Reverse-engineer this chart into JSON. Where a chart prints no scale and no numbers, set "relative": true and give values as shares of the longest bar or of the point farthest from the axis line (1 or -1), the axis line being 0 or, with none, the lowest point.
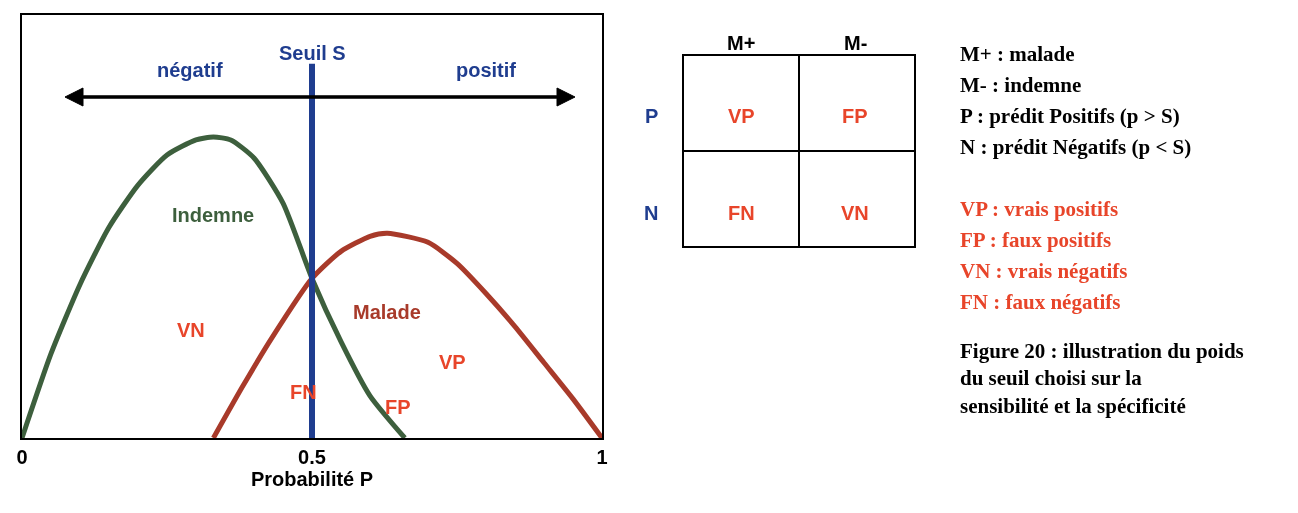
{
  "chart_data": [
    {
      "type": "line",
      "relative": true,
      "xlabel": "Probabilité P",
      "xlim": [
        0,
        1
      ],
      "xticks": [
        0,
        0.5,
        1
      ],
      "legend": false,
      "marker": "none",
      "line_style": "solid",
      "series": [
        {
          "name": "Indemne",
          "color": "#3d5f3d",
          "x": [
            0,
            0.05,
            0.1,
            0.15,
            0.2,
            0.25,
            0.3,
            0.33,
            0.36,
            0.4,
            0.45,
            0.5,
            0.55,
            0.6,
            0.66
          ],
          "values": [
            0,
            0.28,
            0.51,
            0.7,
            0.84,
            0.94,
            0.99,
            1,
            0.99,
            0.93,
            0.78,
            0.53,
            0.32,
            0.14,
            0
          ]
        },
        {
          "name": "Malade",
          "color": "#a83a2a",
          "x": [
            0.33,
            0.38,
            0.43,
            0.5,
            0.55,
            0.6,
            0.63,
            0.7,
            0.75,
            0.8,
            0.85,
            0.9,
            0.95,
            1
          ],
          "values": [
            0,
            0.17,
            0.33,
            0.53,
            0.62,
            0.67,
            0.68,
            0.65,
            0.58,
            0.48,
            0.37,
            0.25,
            0.13,
            0
          ]
        }
      ],
      "ref_lines": [
        {
          "axis": "x",
          "value": 0.5,
          "label": "Seuil S",
          "color": "#1f3d8f"
        }
      ],
      "annotations": [
        "négatif",
        "positif",
        "VN",
        "FN",
        "FP",
        "VP"
      ]
    },
    {
      "type": "other",
      "annotations": [
        "M+",
        "M-",
        "P",
        "N",
        "VP",
        "FP",
        "FN",
        "VN",
        "M+ : malade",
        "M- : indemne",
        "P : prédit Positifs (p > S)",
        "N : prédit Négatifs (p < S)",
        "VP : vrais positifs",
        "FP : faux positifs",
        "VN : vrais négatifs",
        "FN : faux négatifs",
        "Figure 20 : illustration du poids du seuil choisi sur la sensibilité et la spécificité"
      ]
    }
  ]
}
